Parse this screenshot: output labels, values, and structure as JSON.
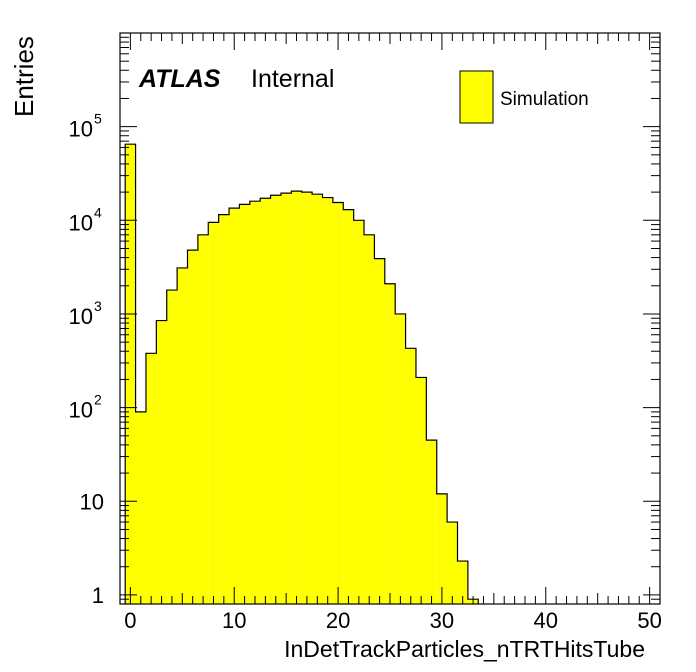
{
  "chart_data": {
    "type": "bar",
    "title": "",
    "xlabel": "InDetTrackParticles_nTRTHitsTube",
    "ylabel": "Entries",
    "xlim": [
      -1,
      51
    ],
    "ylim": [
      0.8,
      1000000
    ],
    "yscale": "log",
    "x_bin_width": 1,
    "x": [
      0,
      1,
      2,
      3,
      4,
      5,
      6,
      7,
      8,
      9,
      10,
      11,
      12,
      13,
      14,
      15,
      16,
      17,
      18,
      19,
      20,
      21,
      22,
      23,
      24,
      25,
      26,
      27,
      28,
      29,
      30,
      31,
      32,
      33
    ],
    "values": [
      65000,
      90,
      380,
      850,
      1800,
      3100,
      4800,
      7000,
      9500,
      11500,
      13500,
      14800,
      16000,
      17200,
      18500,
      19500,
      20500,
      20000,
      19000,
      17500,
      15500,
      13000,
      10000,
      7000,
      3900,
      2100,
      1000,
      430,
      210,
      45,
      12,
      6,
      2.3,
      0.9
    ],
    "x_ticks": [
      0,
      10,
      20,
      30,
      40,
      50
    ],
    "x_tick_labels": [
      "0",
      "10",
      "20",
      "30",
      "40",
      "50"
    ],
    "y_tick_labels": [
      {
        "value": 1,
        "base": "1",
        "exp": ""
      },
      {
        "value": 10,
        "base": "10",
        "exp": ""
      },
      {
        "value": 100,
        "base": "10",
        "exp": "2"
      },
      {
        "value": 1000,
        "base": "10",
        "exp": "3"
      },
      {
        "value": 10000,
        "base": "10",
        "exp": "4"
      },
      {
        "value": 100000,
        "base": "10",
        "exp": "5"
      }
    ],
    "series": [
      {
        "name": "Simulation",
        "color": "#ffff00",
        "edge_color": "#000000"
      }
    ],
    "legend_position": "top-right",
    "grid": false,
    "annotations": {
      "experiment": "ATLAS",
      "status": "Internal"
    }
  }
}
